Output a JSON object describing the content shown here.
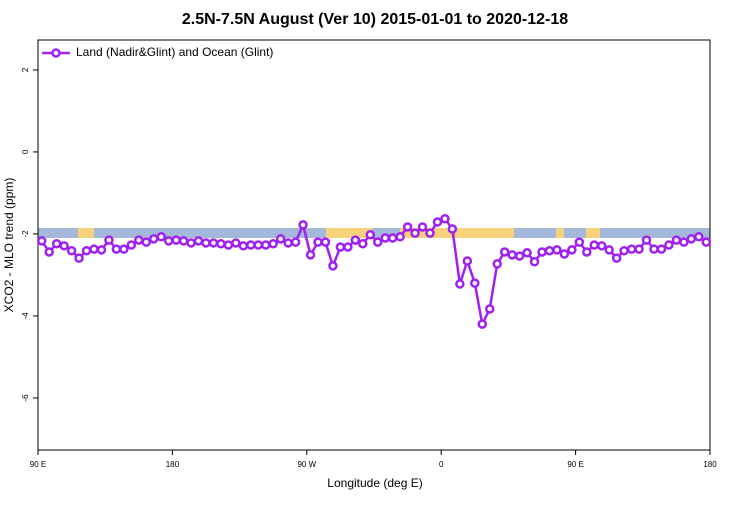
{
  "chart_data": {
    "type": "line",
    "title": "2.5N-7.5N August (Ver 10)   2015-01-01 to 2020-12-18",
    "x_label": "Longitude (deg E)",
    "y_label": "XCO2 - MLO trend (ppm)",
    "legend": "top-left",
    "xlim": [
      90,
      540
    ],
    "xticks": [
      {
        "value": 90,
        "label": "90 E"
      },
      180,
      {
        "value": 270,
        "label": "90 W"
      },
      {
        "value": 360,
        "label": "0"
      },
      {
        "value": 450,
        "label": "90 E"
      },
      {
        "value": 540,
        "label": "180"
      }
    ],
    "ylim": [
      -7.27,
      2.73
    ],
    "yticks": [
      2,
      0,
      -2,
      -4,
      -6
    ],
    "x": [
      92.5,
      97.5,
      102.5,
      107.5,
      112.5,
      117.5,
      122.5,
      127.5,
      132.5,
      137.5,
      142.5,
      147.5,
      152.5,
      157.5,
      162.5,
      167.5,
      172.5,
      177.5,
      182.5,
      187.5,
      192.5,
      197.5,
      202.5,
      207.5,
      212.5,
      217.5,
      222.5,
      227.5,
      232.5,
      237.5,
      242.5,
      247.5,
      252.5,
      257.5,
      262.5,
      267.5,
      272.5,
      277.5,
      282.5,
      287.5,
      292.5,
      297.5,
      302.5,
      307.5,
      312.5,
      317.5,
      322.5,
      327.5,
      332.5,
      337.5,
      342.5,
      347.5,
      352.5,
      357.5,
      362.5,
      367.5,
      372.5,
      377.5,
      382.5,
      387.5,
      392.5,
      397.5,
      402.5,
      407.5,
      412.5,
      417.5,
      422.5,
      427.5,
      432.5,
      437.5,
      442.5,
      447.5,
      452.5,
      457.5,
      462.5,
      467.5,
      472.5,
      477.5,
      482.5,
      487.5,
      492.5,
      497.5,
      502.5,
      507.5,
      512.5,
      517.5,
      522.5,
      527.5,
      532.5,
      537.5
    ],
    "series": [
      {
        "name": "Land (Nadir&Glint) and Ocean (Glint)",
        "color": "#a020f0",
        "values": [
          -2.17,
          -2.44,
          -2.24,
          -2.29,
          -2.41,
          -2.59,
          -2.41,
          -2.37,
          -2.39,
          -2.15,
          -2.37,
          -2.37,
          -2.27,
          -2.15,
          -2.2,
          -2.12,
          -2.07,
          -2.17,
          -2.15,
          -2.17,
          -2.22,
          -2.17,
          -2.22,
          -2.22,
          -2.24,
          -2.27,
          -2.22,
          -2.29,
          -2.27,
          -2.27,
          -2.27,
          -2.24,
          -2.12,
          -2.22,
          -2.2,
          -1.78,
          -2.51,
          -2.2,
          -2.2,
          -2.78,
          -2.32,
          -2.32,
          -2.15,
          -2.24,
          -2.02,
          -2.2,
          -2.1,
          -2.1,
          -2.07,
          -1.83,
          -1.98,
          -1.83,
          -1.98,
          -1.71,
          -1.63,
          -1.88,
          -3.22,
          -2.66,
          -3.2,
          -4.2,
          -3.83,
          -2.73,
          -2.44,
          -2.51,
          -2.54,
          -2.46,
          -2.68,
          -2.44,
          -2.41,
          -2.39,
          -2.49,
          -2.39,
          -2.2,
          -2.44,
          -2.27,
          -2.29,
          -2.39,
          -2.59,
          -2.41,
          -2.37,
          -2.37,
          -2.15,
          -2.37,
          -2.37,
          -2.27,
          -2.15,
          -2.2,
          -2.12,
          -2.07,
          -2.2
        ]
      }
    ]
  }
}
